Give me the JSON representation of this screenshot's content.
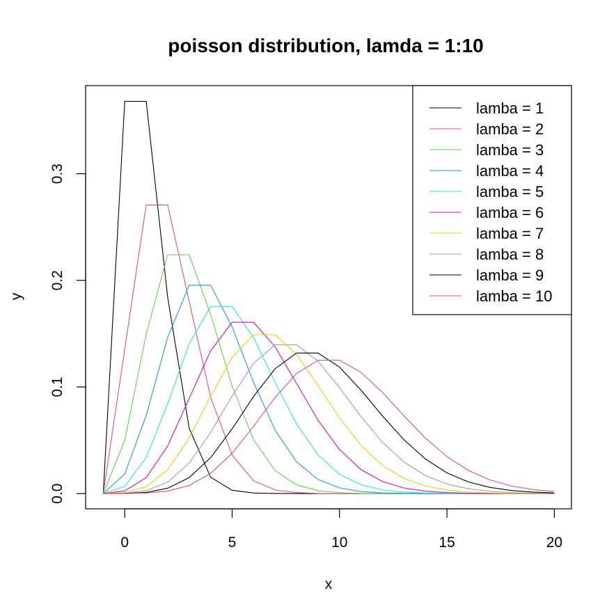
{
  "chart_data": {
    "type": "line",
    "title": "poisson distribution, lamda = 1:10",
    "xlabel": "x",
    "ylabel": "y",
    "xlim": [
      -1,
      20
    ],
    "ylim": [
      0,
      0.37
    ],
    "x_ticks": [
      0,
      5,
      10,
      15,
      20
    ],
    "y_ticks": [
      0.0,
      0.1,
      0.2,
      0.3
    ],
    "x_tick_labels": [
      "0",
      "5",
      "10",
      "15",
      "20"
    ],
    "y_tick_labels": [
      "0.0",
      "0.1",
      "0.2",
      "0.3"
    ],
    "x": [
      -1,
      0,
      1,
      2,
      3,
      4,
      5,
      6,
      7,
      8,
      9,
      10,
      11,
      12,
      13,
      14,
      15,
      16,
      17,
      18,
      19,
      20
    ],
    "legend_position": "top-right",
    "grid": false,
    "series": [
      {
        "name": "lamba = 1",
        "color": "#000000",
        "values": [
          0,
          0.3679,
          0.3679,
          0.1839,
          0.0613,
          0.0153,
          0.0031,
          0.0005,
          0.0001,
          0,
          0,
          0,
          0,
          0,
          0,
          0,
          0,
          0,
          0,
          0,
          0,
          0
        ]
      },
      {
        "name": "lamba = 2",
        "color": "#DF536B",
        "values": [
          0,
          0.1353,
          0.2707,
          0.2707,
          0.1804,
          0.0902,
          0.0361,
          0.012,
          0.0034,
          0.0009,
          0.0002,
          0,
          0,
          0,
          0,
          0,
          0,
          0,
          0,
          0,
          0,
          0
        ]
      },
      {
        "name": "lamba = 3",
        "color": "#61D04F",
        "values": [
          0,
          0.0498,
          0.1494,
          0.224,
          0.224,
          0.168,
          0.1008,
          0.0504,
          0.0216,
          0.0081,
          0.0027,
          0.0008,
          0.0002,
          0.0001,
          0,
          0,
          0,
          0,
          0,
          0,
          0,
          0
        ]
      },
      {
        "name": "lamba = 4",
        "color": "#2297E6",
        "values": [
          0,
          0.0183,
          0.0733,
          0.1465,
          0.1954,
          0.1954,
          0.1563,
          0.1042,
          0.0595,
          0.0298,
          0.0132,
          0.0053,
          0.0019,
          0.0006,
          0.0002,
          0.0001,
          0,
          0,
          0,
          0,
          0,
          0
        ]
      },
      {
        "name": "lamba = 5",
        "color": "#28E2E5",
        "values": [
          0,
          0.0067,
          0.0337,
          0.0842,
          0.1404,
          0.1755,
          0.1755,
          0.1462,
          0.1044,
          0.0653,
          0.0363,
          0.0181,
          0.0082,
          0.0034,
          0.0013,
          0.0005,
          0.0002,
          0,
          0,
          0,
          0,
          0
        ]
      },
      {
        "name": "lamba = 6",
        "color": "#CD0BBC",
        "values": [
          0,
          0.0025,
          0.0149,
          0.0446,
          0.0892,
          0.1339,
          0.1606,
          0.1606,
          0.1377,
          0.1033,
          0.0688,
          0.0413,
          0.0225,
          0.0113,
          0.0052,
          0.0022,
          0.0009,
          0.0003,
          0.0001,
          0,
          0,
          0
        ]
      },
      {
        "name": "lamba = 7",
        "color": "#F5C710",
        "values": [
          0,
          0.0009,
          0.0064,
          0.0223,
          0.0521,
          0.0912,
          0.1277,
          0.149,
          0.149,
          0.1304,
          0.1014,
          0.071,
          0.0452,
          0.0263,
          0.0142,
          0.0071,
          0.0033,
          0.0014,
          0.0006,
          0.0002,
          0.0001,
          0
        ]
      },
      {
        "name": "lamba = 8",
        "color": "#9E9E9E",
        "values": [
          0,
          0.0003,
          0.0027,
          0.0107,
          0.0286,
          0.0573,
          0.0916,
          0.1221,
          0.1396,
          0.1396,
          0.1241,
          0.0993,
          0.0722,
          0.0481,
          0.0296,
          0.0169,
          0.009,
          0.0045,
          0.0021,
          0.0009,
          0.0004,
          0.0002
        ]
      },
      {
        "name": "lamba = 9",
        "color": "#000000",
        "values": [
          0,
          0.0001,
          0.0011,
          0.005,
          0.015,
          0.0337,
          0.0607,
          0.0911,
          0.1171,
          0.1318,
          0.1318,
          0.1186,
          0.097,
          0.0728,
          0.0504,
          0.0324,
          0.0194,
          0.0109,
          0.0058,
          0.0029,
          0.0014,
          0.0006
        ]
      },
      {
        "name": "lamba = 10",
        "color": "#DF536B",
        "values": [
          0,
          0,
          0.0005,
          0.0023,
          0.0076,
          0.0189,
          0.0378,
          0.0631,
          0.0901,
          0.1126,
          0.1251,
          0.1251,
          0.1137,
          0.0948,
          0.0729,
          0.0521,
          0.0347,
          0.0217,
          0.0128,
          0.0071,
          0.0037,
          0.0019
        ]
      }
    ]
  }
}
